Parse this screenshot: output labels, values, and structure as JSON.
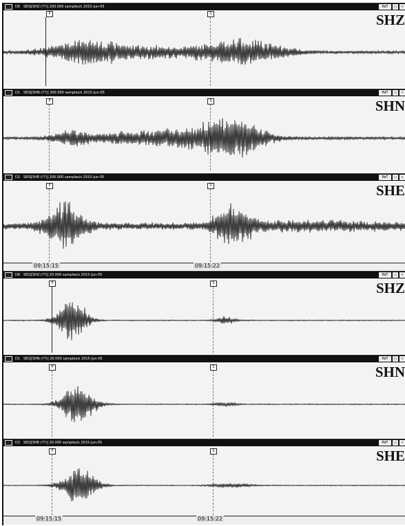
{
  "blocks": [
    {
      "station": "SEIS",
      "time_labels": [
        "09:15:15",
        "09:15:22"
      ],
      "panels": [
        {
          "index": "D6",
          "header": "SEIS[SHZ-(??)] 200.000 samples/s 2015-Jun-05",
          "channel": "SHZ",
          "marker_p": "P",
          "marker_s": "S",
          "window_button": "RWT"
        },
        {
          "index": "D1",
          "header": "SEIS[SHN-(??)] 200.000 samples/s 2015-Jun-05",
          "channel": "SHN",
          "marker_p": "P",
          "marker_s": "S",
          "window_button": "RWT"
        },
        {
          "index": "D2",
          "header": "SEIS[SHE-(??)] 200.000 samples/s 2015-Jun-05",
          "channel": "SHE",
          "marker_p": "P",
          "marker_s": "S",
          "window_button": "RWT"
        }
      ]
    },
    {
      "station": "SEI2",
      "time_labels": [
        "09:15:15",
        "09:15:22"
      ],
      "panels": [
        {
          "index": "D6",
          "header": "SEI2[SHZ-(??)] 20.000 samples/s 2015-Jun-05",
          "channel": "SHZ",
          "marker_p": "P",
          "marker_s": "S",
          "window_button": "RWT"
        },
        {
          "index": "D1",
          "header": "SEI2[SHN-(??)] 20.000 samples/s 2015-Jun-05",
          "channel": "SHN",
          "marker_p": "P",
          "marker_s": "S",
          "window_button": "RWT"
        },
        {
          "index": "D2",
          "header": "SEI2[SHE-(??)] 20.000 samples/s 2015-Jun-05",
          "channel": "SHE",
          "marker_p": "P",
          "marker_s": "S",
          "window_button": "RWT"
        }
      ]
    }
  ],
  "colors": {
    "header": "#111111",
    "trace": "#111111",
    "panel_bg": "#f3f3f3"
  }
}
